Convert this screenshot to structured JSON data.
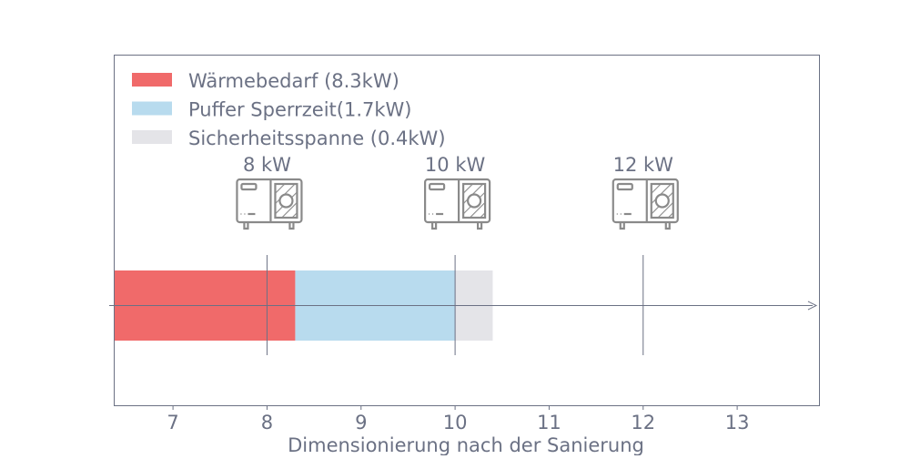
{
  "chart_data": {
    "type": "bar",
    "orientation": "horizontal",
    "stacked": true,
    "xlabel": "Dimensionierung nach der Sanierung",
    "ylabel": "",
    "xlim": [
      6.37,
      13.87
    ],
    "xticks": [
      "7",
      "8",
      "9",
      "10",
      "11",
      "12",
      "13"
    ],
    "grid": false,
    "legend_position": "top-left",
    "series": [
      {
        "name": "Wärmebedarf (8.3kW)",
        "value": 8.3,
        "color": "#f06a6a"
      },
      {
        "name": "Puffer Sperrzeit(1.7kW)",
        "value": 1.7,
        "color": "#b8dbee"
      },
      {
        "name": "Sicherheitsspanne (0.4kW)",
        "value": 0.4,
        "color": "#e4e4e8"
      }
    ],
    "markers": [
      {
        "x": 8,
        "label": "8 kW",
        "icon": "heat-pump-icon"
      },
      {
        "x": 10,
        "label": "10 kW",
        "icon": "heat-pump-icon"
      },
      {
        "x": 12,
        "label": "12 kW",
        "icon": "heat-pump-icon"
      }
    ],
    "colors": {
      "text": "#6b7184",
      "axis": "#6b7184",
      "icon": "#8a8a8a"
    }
  }
}
